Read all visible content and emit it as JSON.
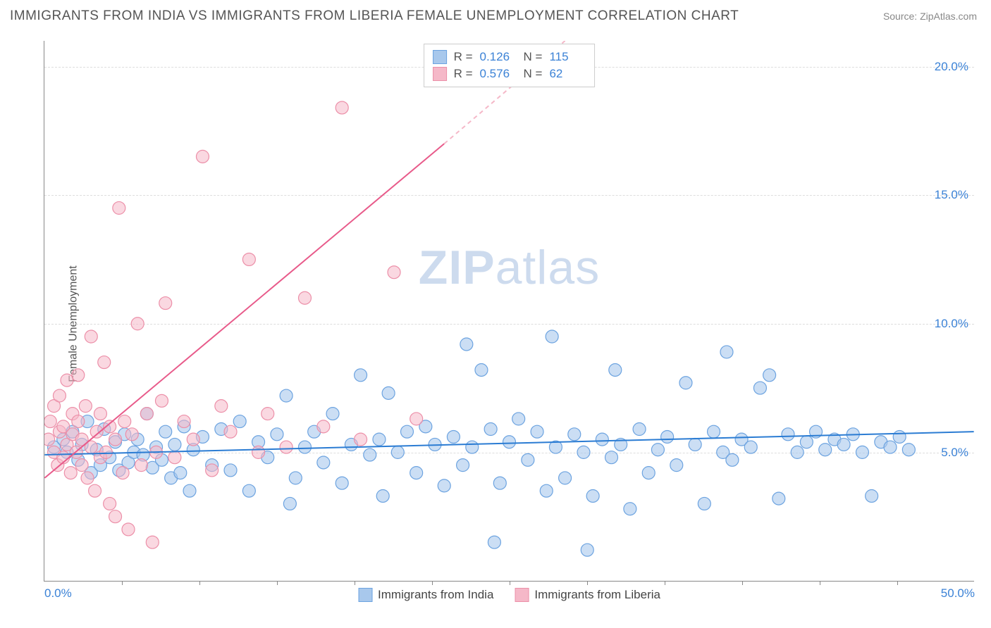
{
  "header": {
    "title": "IMMIGRANTS FROM INDIA VS IMMIGRANTS FROM LIBERIA FEMALE UNEMPLOYMENT CORRELATION CHART",
    "source": "Source: ZipAtlas.com"
  },
  "chart": {
    "type": "scatter",
    "y_axis_label": "Female Unemployment",
    "background_color": "#ffffff",
    "grid_color": "#dddddd",
    "axis_color": "#888888",
    "tick_label_color": "#3b82d6",
    "tick_fontsize": 17,
    "axis_label_fontsize": 16,
    "xlim": [
      0,
      50
    ],
    "ylim": [
      0,
      21
    ],
    "x_ticks": [
      0,
      50
    ],
    "x_tick_labels": [
      "0.0%",
      "50.0%"
    ],
    "x_minor_ticks": [
      4.17,
      8.33,
      12.5,
      16.67,
      20.83,
      25,
      29.17,
      33.33,
      37.5,
      41.67,
      45.83
    ],
    "y_ticks": [
      5,
      10,
      15,
      20
    ],
    "y_tick_labels": [
      "5.0%",
      "10.0%",
      "15.0%",
      "20.0%"
    ],
    "watermark": {
      "text_bold": "ZIP",
      "text_light": "atlas",
      "color": "#b8cce8",
      "fontsize": 68
    },
    "legend_top": [
      {
        "swatch_fill": "#a8c8ec",
        "swatch_border": "#6ca3e0",
        "r_label": "R =",
        "r_value": "0.126",
        "n_label": "N =",
        "n_value": "115"
      },
      {
        "swatch_fill": "#f5b8c8",
        "swatch_border": "#ec8fa8",
        "r_label": "R =",
        "r_value": "0.576",
        "n_label": "N =",
        "n_value": "62"
      }
    ],
    "legend_bottom": [
      {
        "swatch_fill": "#a8c8ec",
        "swatch_border": "#6ca3e0",
        "label": "Immigrants from India"
      },
      {
        "swatch_fill": "#f5b8c8",
        "swatch_border": "#ec8fa8",
        "label": "Immigrants from Liberia"
      }
    ],
    "series": [
      {
        "name": "Immigrants from India",
        "marker_fill": "#a8c8ec",
        "marker_fill_opacity": 0.6,
        "marker_border": "#6ca3e0",
        "marker_radius": 9,
        "trend_line_color": "#2b7cd3",
        "trend_line_width": 2,
        "trend_dash_color": "#9cc1e8",
        "trend": {
          "x1": 0,
          "y1": 4.9,
          "x2": 50,
          "y2": 5.8
        },
        "points": [
          [
            0.5,
            5.2
          ],
          [
            1,
            5.5
          ],
          [
            1.2,
            5.0
          ],
          [
            1.5,
            5.8
          ],
          [
            1.8,
            4.7
          ],
          [
            2,
            5.3
          ],
          [
            2.3,
            6.2
          ],
          [
            2.5,
            4.2
          ],
          [
            2.8,
            5.1
          ],
          [
            3,
            4.5
          ],
          [
            3.2,
            5.9
          ],
          [
            3.5,
            4.8
          ],
          [
            3.8,
            5.4
          ],
          [
            4,
            4.3
          ],
          [
            4.3,
            5.7
          ],
          [
            4.5,
            4.6
          ],
          [
            4.8,
            5.0
          ],
          [
            5,
            5.5
          ],
          [
            5.3,
            4.9
          ],
          [
            5.5,
            6.5
          ],
          [
            5.8,
            4.4
          ],
          [
            6,
            5.2
          ],
          [
            6.3,
            4.7
          ],
          [
            6.5,
            5.8
          ],
          [
            6.8,
            4.0
          ],
          [
            7,
            5.3
          ],
          [
            7.3,
            4.2
          ],
          [
            7.5,
            6.0
          ],
          [
            7.8,
            3.5
          ],
          [
            8,
            5.1
          ],
          [
            8.5,
            5.6
          ],
          [
            9,
            4.5
          ],
          [
            9.5,
            5.9
          ],
          [
            10,
            4.3
          ],
          [
            10.5,
            6.2
          ],
          [
            11,
            3.5
          ],
          [
            11.5,
            5.4
          ],
          [
            12,
            4.8
          ],
          [
            12.5,
            5.7
          ],
          [
            13,
            7.2
          ],
          [
            13.2,
            3.0
          ],
          [
            13.5,
            4.0
          ],
          [
            14,
            5.2
          ],
          [
            14.5,
            5.8
          ],
          [
            15,
            4.6
          ],
          [
            15.5,
            6.5
          ],
          [
            16,
            3.8
          ],
          [
            16.5,
            5.3
          ],
          [
            17,
            8.0
          ],
          [
            17.5,
            4.9
          ],
          [
            18,
            5.5
          ],
          [
            18.2,
            3.3
          ],
          [
            18.5,
            7.3
          ],
          [
            19,
            5.0
          ],
          [
            19.5,
            5.8
          ],
          [
            20,
            4.2
          ],
          [
            20.5,
            6.0
          ],
          [
            21,
            5.3
          ],
          [
            21.5,
            3.7
          ],
          [
            22,
            5.6
          ],
          [
            22.7,
            9.2
          ],
          [
            22.5,
            4.5
          ],
          [
            23,
            5.2
          ],
          [
            23.5,
            8.2
          ],
          [
            24,
            5.9
          ],
          [
            24.2,
            1.5
          ],
          [
            24.5,
            3.8
          ],
          [
            25,
            5.4
          ],
          [
            25.5,
            6.3
          ],
          [
            26,
            4.7
          ],
          [
            26.5,
            5.8
          ],
          [
            27,
            3.5
          ],
          [
            27.3,
            9.5
          ],
          [
            27.5,
            5.2
          ],
          [
            28,
            4.0
          ],
          [
            28.5,
            5.7
          ],
          [
            29,
            5.0
          ],
          [
            29.2,
            1.2
          ],
          [
            29.5,
            3.3
          ],
          [
            30,
            5.5
          ],
          [
            30.5,
            4.8
          ],
          [
            30.7,
            8.2
          ],
          [
            31,
            5.3
          ],
          [
            31.5,
            2.8
          ],
          [
            32,
            5.9
          ],
          [
            32.5,
            4.2
          ],
          [
            33,
            5.1
          ],
          [
            33.5,
            5.6
          ],
          [
            34,
            4.5
          ],
          [
            34.5,
            7.7
          ],
          [
            35,
            5.3
          ],
          [
            35.5,
            3.0
          ],
          [
            36,
            5.8
          ],
          [
            36.5,
            5.0
          ],
          [
            36.7,
            8.9
          ],
          [
            37,
            4.7
          ],
          [
            37.5,
            5.5
          ],
          [
            38,
            5.2
          ],
          [
            38.5,
            7.5
          ],
          [
            39,
            8.0
          ],
          [
            39.5,
            3.2
          ],
          [
            40,
            5.7
          ],
          [
            40.5,
            5.0
          ],
          [
            41,
            5.4
          ],
          [
            41.5,
            5.8
          ],
          [
            42,
            5.1
          ],
          [
            42.5,
            5.5
          ],
          [
            43,
            5.3
          ],
          [
            43.5,
            5.7
          ],
          [
            44,
            5.0
          ],
          [
            44.5,
            3.3
          ],
          [
            45,
            5.4
          ],
          [
            45.5,
            5.2
          ],
          [
            46,
            5.6
          ],
          [
            46.5,
            5.1
          ]
        ]
      },
      {
        "name": "Immigrants from Liberia",
        "marker_fill": "#f5b8c8",
        "marker_fill_opacity": 0.55,
        "marker_border": "#ec8fa8",
        "marker_radius": 9,
        "trend_line_color": "#e85a8a",
        "trend_line_width": 2,
        "trend_dash_color": "#f5b8c8",
        "trend": {
          "x1": 0,
          "y1": 4.0,
          "x2": 21.5,
          "y2": 17.0
        },
        "trend_dash": {
          "x1": 21.5,
          "y1": 17.0,
          "x2": 28,
          "y2": 21
        },
        "points": [
          [
            0.2,
            5.5
          ],
          [
            0.3,
            6.2
          ],
          [
            0.5,
            5.0
          ],
          [
            0.5,
            6.8
          ],
          [
            0.7,
            4.5
          ],
          [
            0.8,
            5.8
          ],
          [
            0.8,
            7.2
          ],
          [
            1,
            4.8
          ],
          [
            1,
            6.0
          ],
          [
            1.2,
            5.3
          ],
          [
            1.2,
            7.8
          ],
          [
            1.4,
            4.2
          ],
          [
            1.5,
            5.7
          ],
          [
            1.5,
            6.5
          ],
          [
            1.7,
            5.0
          ],
          [
            1.8,
            6.2
          ],
          [
            1.8,
            8.0
          ],
          [
            2,
            4.5
          ],
          [
            2,
            5.5
          ],
          [
            2.2,
            6.8
          ],
          [
            2.3,
            4.0
          ],
          [
            2.5,
            5.2
          ],
          [
            2.5,
            9.5
          ],
          [
            2.7,
            3.5
          ],
          [
            2.8,
            5.8
          ],
          [
            3,
            4.8
          ],
          [
            3,
            6.5
          ],
          [
            3.2,
            8.5
          ],
          [
            3.3,
            5.0
          ],
          [
            3.5,
            3.0
          ],
          [
            3.5,
            6.0
          ],
          [
            3.8,
            2.5
          ],
          [
            3.8,
            5.5
          ],
          [
            4,
            14.5
          ],
          [
            4.2,
            4.2
          ],
          [
            4.3,
            6.2
          ],
          [
            4.5,
            2.0
          ],
          [
            4.7,
            5.7
          ],
          [
            5,
            10.0
          ],
          [
            5.2,
            4.5
          ],
          [
            5.5,
            6.5
          ],
          [
            5.8,
            1.5
          ],
          [
            6,
            5.0
          ],
          [
            6.3,
            7.0
          ],
          [
            6.5,
            10.8
          ],
          [
            7,
            4.8
          ],
          [
            7.5,
            6.2
          ],
          [
            8,
            5.5
          ],
          [
            8.5,
            16.5
          ],
          [
            9,
            4.3
          ],
          [
            9.5,
            6.8
          ],
          [
            10,
            5.8
          ],
          [
            11,
            12.5
          ],
          [
            11.5,
            5.0
          ],
          [
            12,
            6.5
          ],
          [
            13,
            5.2
          ],
          [
            14,
            11.0
          ],
          [
            15,
            6.0
          ],
          [
            16,
            18.4
          ],
          [
            17,
            5.5
          ],
          [
            18.8,
            12.0
          ],
          [
            20,
            6.3
          ]
        ]
      }
    ]
  }
}
